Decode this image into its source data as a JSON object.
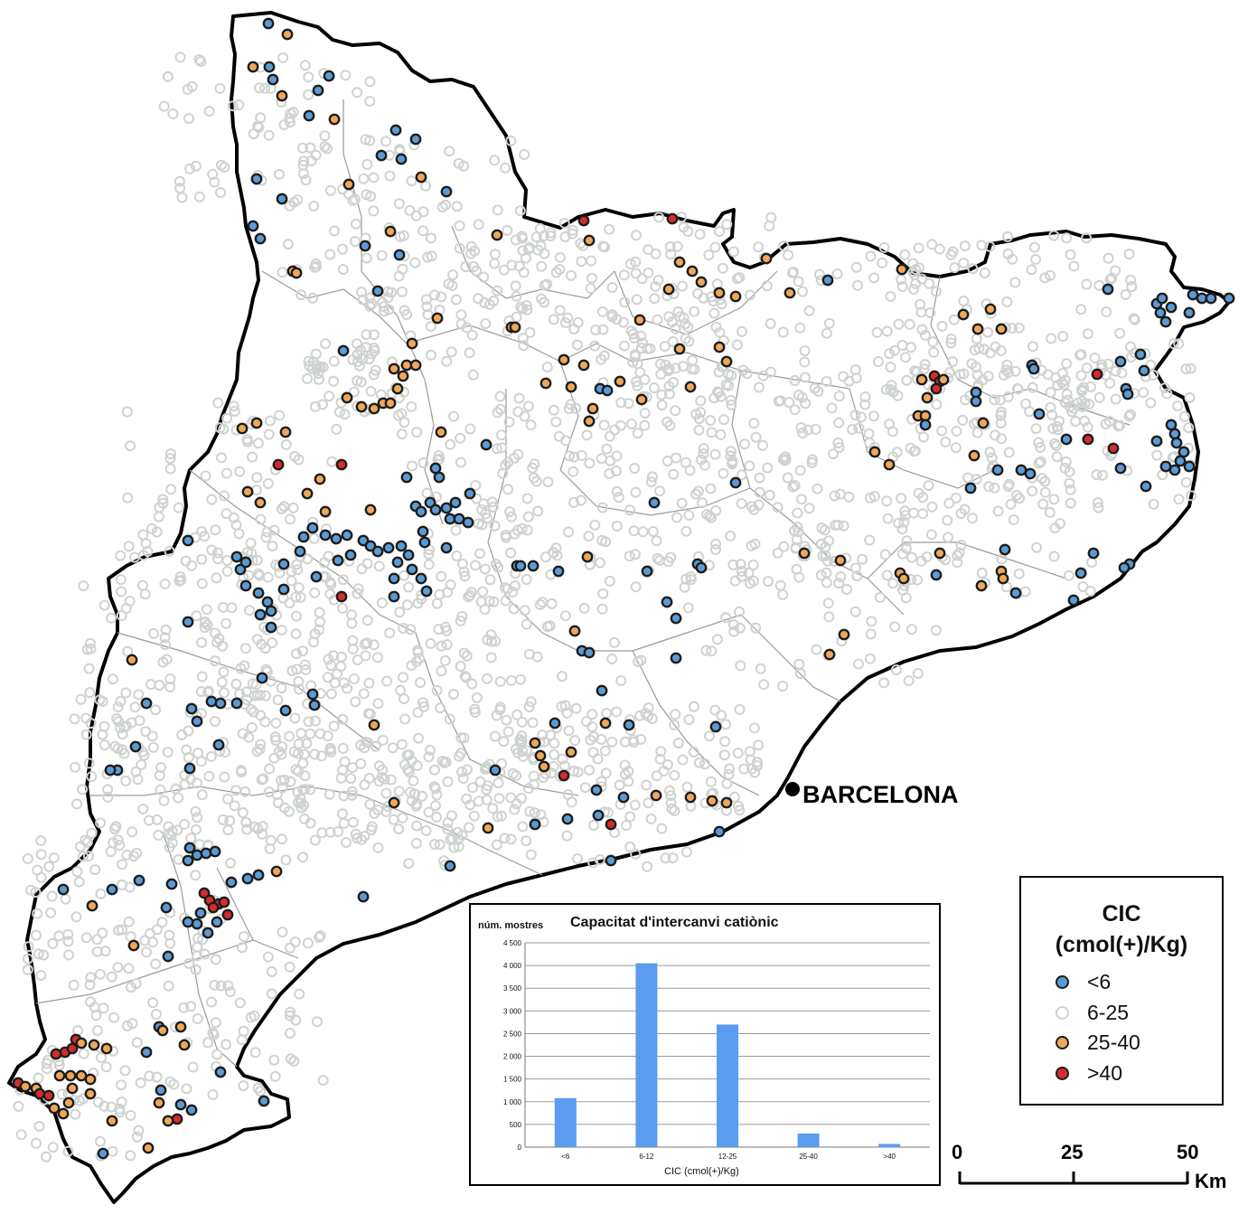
{
  "map": {
    "city_label": "BARCELONA",
    "colors": {
      "outline": "#000000",
      "boundary": "#9a9a9a",
      "lt6": "#5b9bd5",
      "6_25": "#cfd3d0",
      "25_40": "#f0a75a",
      "gt40": "#d62b2b"
    }
  },
  "legend": {
    "title_line1": "CIC",
    "title_line2": "(cmol(+)/Kg)",
    "items": [
      {
        "label": "<6",
        "color": "#5b9bd5"
      },
      {
        "label": "6-25",
        "color": "#ffffff"
      },
      {
        "label": "25-40",
        "color": "#f0a75a"
      },
      {
        "label": ">40",
        "color": "#d62b2b"
      }
    ]
  },
  "scale_bar": {
    "ticks": [
      "0",
      "25",
      "50"
    ],
    "unit": "Km"
  },
  "chart_data": {
    "type": "bar",
    "title": "Capacitat d'intercanvi catiònic",
    "ylabel": "núm. mostres",
    "xlabel": "CIC (cmol(+)/Kg)",
    "categories": [
      "<6",
      "6-12",
      "12-25",
      "25-40",
      ">40"
    ],
    "values": [
      1080,
      4050,
      2700,
      300,
      70
    ],
    "ylim": [
      0,
      4500
    ],
    "yticks": [
      "0",
      "500",
      "1 000",
      "1 500",
      "2 000",
      "2 500",
      "3 000",
      "3 500",
      "4 000",
      "4 500"
    ],
    "grid": true,
    "bar_color": "#5b9bf0"
  }
}
